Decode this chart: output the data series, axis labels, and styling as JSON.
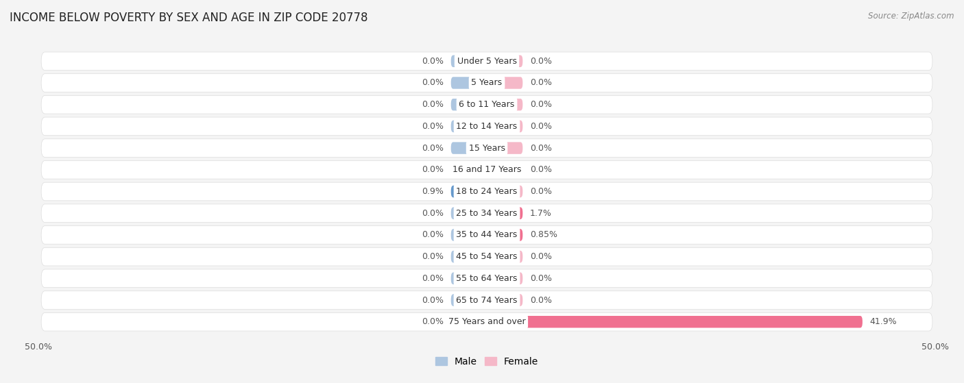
{
  "title": "INCOME BELOW POVERTY BY SEX AND AGE IN ZIP CODE 20778",
  "source": "Source: ZipAtlas.com",
  "categories": [
    "Under 5 Years",
    "5 Years",
    "6 to 11 Years",
    "12 to 14 Years",
    "15 Years",
    "16 and 17 Years",
    "18 to 24 Years",
    "25 to 34 Years",
    "35 to 44 Years",
    "45 to 54 Years",
    "55 to 64 Years",
    "65 to 74 Years",
    "75 Years and over"
  ],
  "male_values": [
    0.0,
    0.0,
    0.0,
    0.0,
    0.0,
    0.0,
    0.9,
    0.0,
    0.0,
    0.0,
    0.0,
    0.0,
    0.0
  ],
  "female_values": [
    0.0,
    0.0,
    0.0,
    0.0,
    0.0,
    0.0,
    0.0,
    1.7,
    0.85,
    0.0,
    0.0,
    0.0,
    41.9
  ],
  "male_color_default": "#adc6e0",
  "male_color_highlight": "#6699cc",
  "female_color_default": "#f5b8c8",
  "female_color_highlight": "#f07090",
  "background_color": "#f4f4f4",
  "row_bg_color": "#ffffff",
  "row_separator_color": "#dddddd",
  "text_color": "#555555",
  "label_color": "#555555",
  "category_text_color": "#333333",
  "xlim": 50.0,
  "min_bar_width": 4.0,
  "bar_height": 0.55,
  "title_fontsize": 12,
  "label_fontsize": 9,
  "category_fontsize": 9,
  "source_fontsize": 8.5
}
